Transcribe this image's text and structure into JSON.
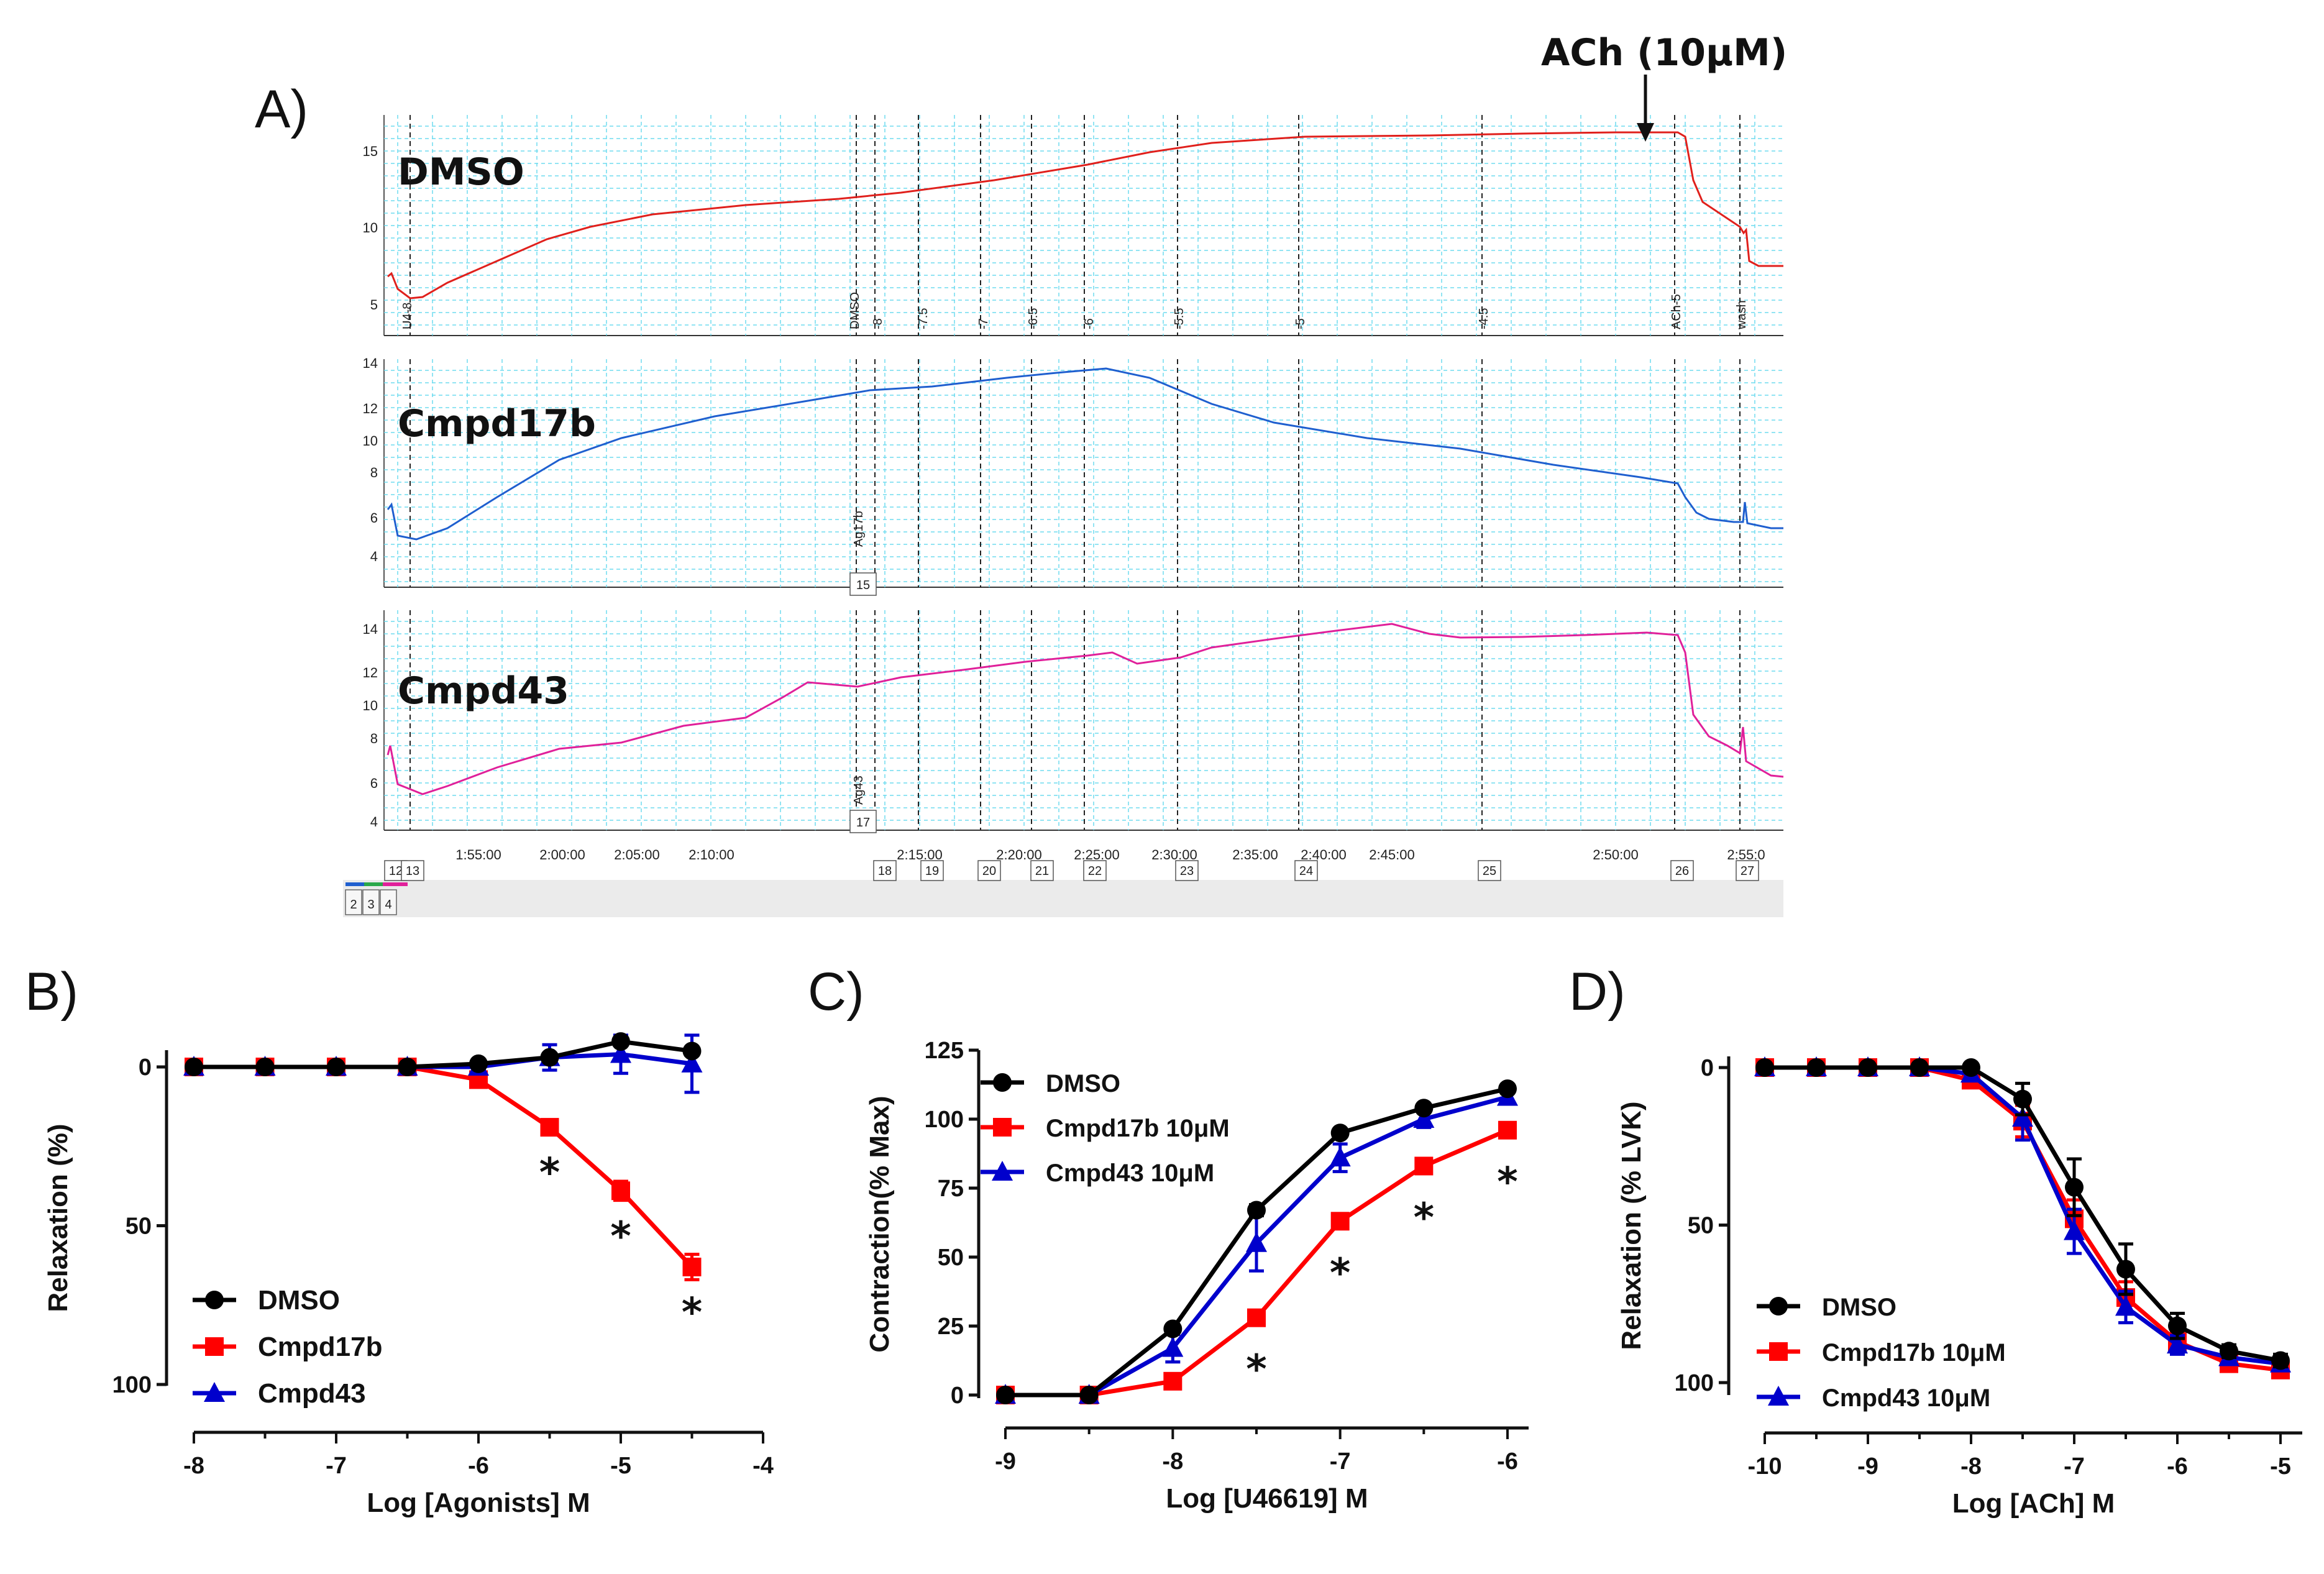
{
  "figure": {
    "panels": [
      "A)",
      "B)",
      "C)",
      "D)"
    ]
  },
  "panel_a": {
    "annotation": "ACh (10μM)",
    "traces": [
      {
        "name": "DMSO",
        "color": "#e0201c",
        "yticks": [
          "15",
          "10",
          "5"
        ],
        "markers": [
          "U4-8",
          "DMSO",
          "-8",
          "-7.5",
          "-7",
          "-6.5",
          "-6",
          "-5.5",
          "-5",
          "-4.5",
          "ACh-5",
          "wash"
        ]
      },
      {
        "name": "Cmpd17b",
        "color": "#1f5fcf",
        "yticks": [
          "14",
          "12",
          "10",
          "8",
          "6",
          "4"
        ],
        "markers": [
          "Ag17b"
        ],
        "box": "15"
      },
      {
        "name": "Cmpd43",
        "color": "#e0209a",
        "yticks": [
          "14",
          "12",
          "10",
          "8",
          "6",
          "4"
        ],
        "markers": [
          "Ag43"
        ],
        "box": "17"
      }
    ],
    "time_labels": [
      "1:55:00",
      "2:00:00",
      "2:05:00",
      "2:10:00",
      "2:15:00",
      "2:20:00",
      "2:25:00",
      "2:30:00",
      "2:35:00",
      "2:40:00",
      "2:45:00",
      "2:50:00",
      "2:55:0"
    ],
    "event_boxes": [
      "12",
      "13",
      "18",
      "19",
      "20",
      "21",
      "22",
      "23",
      "24",
      "25",
      "26",
      "27"
    ],
    "channel_tabs": [
      "2",
      "3",
      "4"
    ]
  },
  "chart_data": [
    {
      "panel": "B)",
      "type": "line",
      "xlabel": "Log [Agonists] M",
      "ylabel": "Relaxation (%)",
      "xlim": [
        -8,
        -4
      ],
      "ylim": [
        0,
        100
      ],
      "y_inverted": true,
      "xticks": [
        "-8",
        "-7",
        "-6",
        "-5",
        "-4"
      ],
      "yticks": [
        "0",
        "50",
        "100"
      ],
      "legend": "bottom-left",
      "series": [
        {
          "name": "DMSO",
          "color": "#000000",
          "marker": "circle",
          "x": [
            -8,
            -7.5,
            -7,
            -6.5,
            -6,
            -5.5,
            -5,
            -4.5
          ],
          "y": [
            0,
            0,
            0,
            0,
            -1,
            -3,
            -8,
            -5
          ],
          "err": [
            0,
            0,
            0,
            0,
            1,
            1,
            1,
            1
          ]
        },
        {
          "name": "Cmpd17b",
          "color": "#ff0000",
          "marker": "square",
          "x": [
            -8,
            -7.5,
            -7,
            -6.5,
            -6,
            -5.5,
            -5,
            -4.5
          ],
          "y": [
            0,
            0,
            0,
            0,
            4,
            19,
            39,
            63
          ],
          "err": [
            0,
            0,
            0,
            0,
            1,
            2,
            3,
            4
          ]
        },
        {
          "name": "Cmpd43",
          "color": "#0000cc",
          "marker": "triangle",
          "x": [
            -8,
            -7.5,
            -7,
            -6.5,
            -6,
            -5.5,
            -5,
            -4.5
          ],
          "y": [
            0,
            0,
            0,
            0,
            0,
            -3,
            -4,
            -1
          ],
          "err": [
            0,
            0,
            0,
            0,
            1,
            4,
            6,
            9
          ]
        }
      ],
      "stars_x": [
        -5.5,
        -5,
        -4.5
      ],
      "star_label": "*"
    },
    {
      "panel": "C)",
      "type": "line",
      "xlabel": "Log [U46619] M",
      "ylabel": "Contraction(% Max)",
      "xlim": [
        -9,
        -6
      ],
      "ylim": [
        0,
        125
      ],
      "xticks": [
        "-9",
        "-8",
        "-7",
        "-6"
      ],
      "yticks": [
        "0",
        "25",
        "50",
        "75",
        "100",
        "125"
      ],
      "legend": "top-left",
      "series": [
        {
          "name": "DMSO",
          "color": "#000000",
          "marker": "circle",
          "x": [
            -9,
            -8.5,
            -8,
            -7.5,
            -7,
            -6.5,
            -6
          ],
          "y": [
            0,
            0,
            24,
            67,
            95,
            104,
            111
          ],
          "err": [
            0,
            0,
            1,
            2,
            1,
            1,
            1
          ]
        },
        {
          "name": "Cmpd17b 10μM",
          "color": "#ff0000",
          "marker": "square",
          "x": [
            -9,
            -8.5,
            -8,
            -7.5,
            -7,
            -6.5,
            -6
          ],
          "y": [
            0,
            0,
            5,
            28,
            63,
            83,
            96
          ],
          "err": [
            0,
            0,
            1,
            2,
            2,
            2,
            2
          ]
        },
        {
          "name": "Cmpd43 10μM",
          "color": "#0000cc",
          "marker": "triangle",
          "x": [
            -9,
            -8.5,
            -8,
            -7.5,
            -7,
            -6.5,
            -6
          ],
          "y": [
            0,
            0,
            17,
            55,
            86,
            100,
            108
          ],
          "err": [
            0,
            0,
            5,
            10,
            5,
            3,
            2
          ]
        }
      ],
      "stars_x": [
        -7.5,
        -7,
        -6.5,
        -6
      ],
      "star_label": "*"
    },
    {
      "panel": "D)",
      "type": "line",
      "xlabel": "Log [ACh] M",
      "ylabel": "Relaxation (% LVK)",
      "xlim": [
        -10,
        -5
      ],
      "ylim": [
        0,
        100
      ],
      "y_inverted": true,
      "xticks": [
        "-10",
        "-9",
        "-8",
        "-7",
        "-6",
        "-5"
      ],
      "yticks": [
        "0",
        "50",
        "100"
      ],
      "legend": "bottom-left",
      "series": [
        {
          "name": "DMSO",
          "color": "#000000",
          "marker": "circle",
          "x": [
            -10,
            -9.5,
            -9,
            -8.5,
            -8,
            -7.5,
            -7,
            -6.5,
            -6,
            -5.5,
            -5
          ],
          "y": [
            0,
            0,
            0,
            0,
            0,
            10,
            38,
            64,
            82,
            90,
            93
          ],
          "err": [
            0,
            0,
            0,
            0,
            1,
            5,
            9,
            8,
            4,
            2,
            2
          ]
        },
        {
          "name": "Cmpd17b 10μM",
          "color": "#ff0000",
          "marker": "square",
          "x": [
            -10,
            -9.5,
            -9,
            -8.5,
            -8,
            -7.5,
            -7,
            -6.5,
            -6,
            -5.5,
            -5
          ],
          "y": [
            0,
            0,
            0,
            0,
            4,
            17,
            48,
            73,
            87,
            94,
            96
          ],
          "err": [
            0,
            0,
            0,
            0,
            1,
            5,
            6,
            5,
            3,
            2,
            2
          ]
        },
        {
          "name": "Cmpd43 10μM",
          "color": "#0000cc",
          "marker": "triangle",
          "x": [
            -10,
            -9.5,
            -9,
            -8.5,
            -8,
            -7.5,
            -7,
            -6.5,
            -6,
            -5.5,
            -5
          ],
          "y": [
            0,
            0,
            0,
            0,
            2,
            16,
            52,
            76,
            88,
            92,
            94
          ],
          "err": [
            0,
            0,
            0,
            0,
            1,
            7,
            7,
            5,
            3,
            2,
            2
          ]
        }
      ]
    }
  ]
}
